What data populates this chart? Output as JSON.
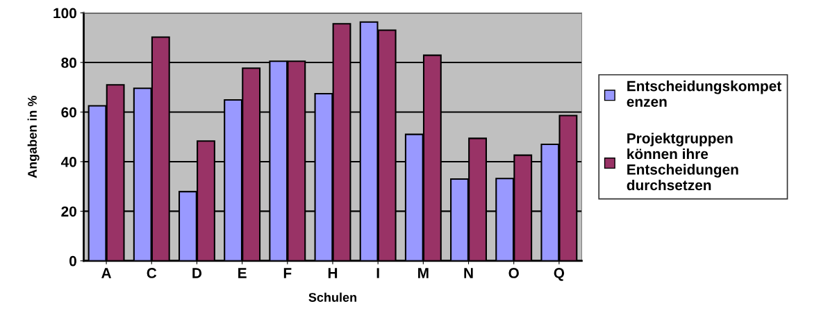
{
  "chart_data": {
    "type": "bar",
    "xlabel": "Schulen",
    "ylabel": "Angaben in %",
    "categories": [
      "A",
      "C",
      "D",
      "E",
      "F",
      "H",
      "I",
      "M",
      "N",
      "O",
      "Q"
    ],
    "series": [
      {
        "name": "Entscheidungskompet\nenzen",
        "color": "#9999ff",
        "values": [
          62.5,
          69.6,
          27.9,
          64.9,
          80.5,
          67.4,
          96.3,
          51,
          33,
          33.2,
          47
        ]
      },
      {
        "name": "Projektgruppen\nkönnen ihre\nEntscheidungen\ndurchsetzen",
        "color": "#993366",
        "values": [
          71,
          90.2,
          48.3,
          77.7,
          80.5,
          95.6,
          93,
          82.9,
          49.4,
          42.6,
          58.6
        ]
      }
    ],
    "ylim": [
      0,
      100
    ],
    "yticks": [
      0,
      20,
      40,
      60,
      80,
      100
    ],
    "grid": "y",
    "legend": "right"
  }
}
